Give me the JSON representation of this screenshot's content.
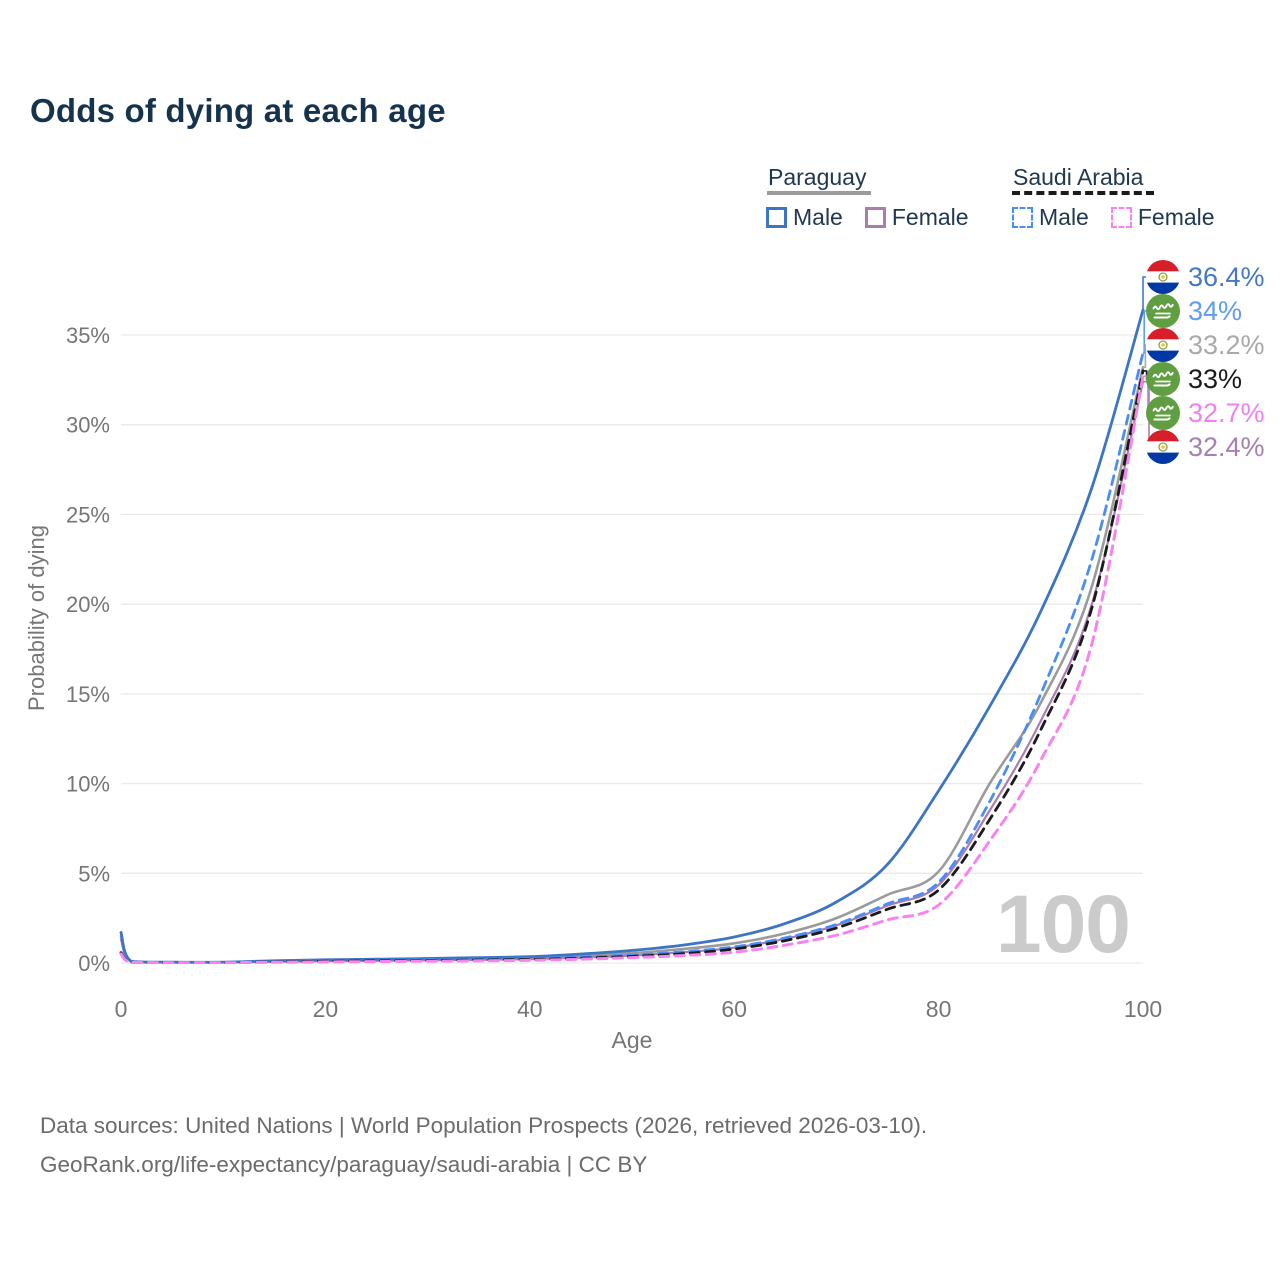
{
  "title": "Odds of dying at each age",
  "legend": {
    "groups": [
      {
        "name": "Paraguay",
        "line_style": "solid",
        "line_color": "#9b9b9b",
        "items": [
          {
            "label": "Male",
            "color": "#3d74c4"
          },
          {
            "label": "Female",
            "color": "#ab7cae"
          }
        ]
      },
      {
        "name": "Saudi Arabia",
        "line_style": "dashed",
        "line_color": "#1b1b1b",
        "items": [
          {
            "label": "Male",
            "color": "#4a8ef5"
          },
          {
            "label": "Female",
            "color": "#f783ef"
          }
        ]
      }
    ]
  },
  "watermark": "100",
  "footer": {
    "line1": "Data sources: United Nations | World Population Prospects (2026, retrieved 2026-03-10).",
    "line2": "GeoRank.org/life-expectancy/paraguay/saudi-arabia | CC BY"
  },
  "chart_data": {
    "type": "line",
    "title": "Odds of dying at each age",
    "xlabel": "Age",
    "ylabel": "Probability of dying",
    "xlim": [
      0,
      100
    ],
    "ylim": [
      0,
      36.5
    ],
    "xticks": [
      0,
      20,
      40,
      60,
      80,
      100
    ],
    "yticks": [
      0,
      5,
      10,
      15,
      20,
      25,
      30,
      35
    ],
    "ytick_suffix": "%",
    "grid": true,
    "legend_position": "top-right",
    "colors": {
      "grid": "#e9e9e9",
      "axis_text": "#767676"
    },
    "series": [
      {
        "name": "Paraguay Both sexes",
        "country": "Paraguay",
        "sex": "Both",
        "color": "#9b9b9b",
        "dash": false,
        "width": 2.6,
        "end_label": {
          "text": "33.2%",
          "color": "#a9a9a9",
          "flag": "paraguay"
        },
        "points": [
          [
            0,
            1.5
          ],
          [
            1,
            0.09
          ],
          [
            5,
            0.04
          ],
          [
            10,
            0.04
          ],
          [
            15,
            0.09
          ],
          [
            20,
            0.14
          ],
          [
            25,
            0.17
          ],
          [
            30,
            0.2
          ],
          [
            35,
            0.24
          ],
          [
            40,
            0.28
          ],
          [
            45,
            0.4
          ],
          [
            50,
            0.55
          ],
          [
            55,
            0.78
          ],
          [
            60,
            1.1
          ],
          [
            65,
            1.65
          ],
          [
            70,
            2.5
          ],
          [
            75,
            3.8
          ],
          [
            80,
            5.1
          ],
          [
            85,
            10
          ],
          [
            90,
            14.5
          ],
          [
            95,
            21
          ],
          [
            100,
            33.2
          ]
        ]
      },
      {
        "name": "Paraguay Female",
        "country": "Paraguay",
        "sex": "Female",
        "color": "#ab7cae",
        "dash": false,
        "width": 2.2,
        "end_label": {
          "text": "32.4%",
          "color": "#a77fb2",
          "flag": "paraguay"
        },
        "points": [
          [
            0,
            1.3
          ],
          [
            1,
            0.08
          ],
          [
            5,
            0.035
          ],
          [
            10,
            0.035
          ],
          [
            15,
            0.07
          ],
          [
            20,
            0.1
          ],
          [
            25,
            0.12
          ],
          [
            30,
            0.15
          ],
          [
            35,
            0.18
          ],
          [
            40,
            0.22
          ],
          [
            45,
            0.3
          ],
          [
            50,
            0.42
          ],
          [
            55,
            0.6
          ],
          [
            60,
            0.85
          ],
          [
            65,
            1.35
          ],
          [
            70,
            2.1
          ],
          [
            75,
            3.2
          ],
          [
            80,
            4.35
          ],
          [
            85,
            8.5
          ],
          [
            90,
            13.5
          ],
          [
            95,
            20
          ],
          [
            100,
            32.4
          ]
        ]
      },
      {
        "name": "Paraguay Male",
        "country": "Paraguay",
        "sex": "Male",
        "color": "#3d74c4",
        "dash": false,
        "width": 2.8,
        "end_label": {
          "text": "36.4%",
          "color": "#4379c2",
          "flag": "paraguay"
        },
        "points": [
          [
            0,
            1.7
          ],
          [
            1,
            0.1
          ],
          [
            5,
            0.05
          ],
          [
            10,
            0.05
          ],
          [
            15,
            0.12
          ],
          [
            20,
            0.18
          ],
          [
            25,
            0.21
          ],
          [
            30,
            0.25
          ],
          [
            35,
            0.3
          ],
          [
            40,
            0.35
          ],
          [
            45,
            0.5
          ],
          [
            50,
            0.7
          ],
          [
            55,
            1.0
          ],
          [
            60,
            1.45
          ],
          [
            65,
            2.2
          ],
          [
            70,
            3.4
          ],
          [
            75,
            5.5
          ],
          [
            80,
            9.6
          ],
          [
            85,
            14.3
          ],
          [
            90,
            19.6
          ],
          [
            95,
            26.5
          ],
          [
            100,
            36.4
          ]
        ]
      },
      {
        "name": "Saudi Arabia Male",
        "country": "Saudi Arabia",
        "sex": "Male",
        "color": "#4a8ef5",
        "dash": true,
        "width": 2.8,
        "end_label": {
          "text": "34%",
          "color": "#5e9cf5",
          "flag": "saudi-arabia"
        },
        "points": [
          [
            0,
            0.6
          ],
          [
            1,
            0.05
          ],
          [
            5,
            0.03
          ],
          [
            10,
            0.03
          ],
          [
            15,
            0.08
          ],
          [
            20,
            0.13
          ],
          [
            25,
            0.15
          ],
          [
            30,
            0.18
          ],
          [
            35,
            0.21
          ],
          [
            40,
            0.25
          ],
          [
            45,
            0.33
          ],
          [
            50,
            0.45
          ],
          [
            55,
            0.62
          ],
          [
            60,
            0.9
          ],
          [
            65,
            1.4
          ],
          [
            70,
            2.15
          ],
          [
            75,
            3.3
          ],
          [
            80,
            4.5
          ],
          [
            85,
            9
          ],
          [
            90,
            15
          ],
          [
            95,
            22.5
          ],
          [
            100,
            34
          ]
        ]
      },
      {
        "name": "Saudi Arabia Both sexes",
        "country": "Saudi Arabia",
        "sex": "Both",
        "color": "#1b1b1b",
        "dash": true,
        "width": 2.8,
        "end_label": {
          "text": "33%",
          "color": "#1a1a1a",
          "flag": "saudi-arabia"
        },
        "points": [
          [
            0,
            0.55
          ],
          [
            1,
            0.045
          ],
          [
            5,
            0.025
          ],
          [
            10,
            0.025
          ],
          [
            15,
            0.06
          ],
          [
            20,
            0.1
          ],
          [
            25,
            0.12
          ],
          [
            30,
            0.14
          ],
          [
            35,
            0.17
          ],
          [
            40,
            0.2
          ],
          [
            45,
            0.27
          ],
          [
            50,
            0.37
          ],
          [
            55,
            0.52
          ],
          [
            60,
            0.78
          ],
          [
            65,
            1.25
          ],
          [
            70,
            1.95
          ],
          [
            75,
            3.0
          ],
          [
            80,
            4.07
          ],
          [
            85,
            8
          ],
          [
            90,
            13
          ],
          [
            95,
            19.8
          ],
          [
            100,
            33
          ]
        ]
      },
      {
        "name": "Saudi Arabia Female",
        "country": "Saudi Arabia",
        "sex": "Female",
        "color": "#f783ef",
        "dash": true,
        "width": 3,
        "end_label": {
          "text": "32.7%",
          "color": "#ef82ee",
          "flag": "saudi-arabia"
        },
        "points": [
          [
            0,
            0.5
          ],
          [
            1,
            0.04
          ],
          [
            5,
            0.02
          ],
          [
            10,
            0.02
          ],
          [
            15,
            0.04
          ],
          [
            20,
            0.06
          ],
          [
            25,
            0.08
          ],
          [
            30,
            0.1
          ],
          [
            35,
            0.12
          ],
          [
            40,
            0.15
          ],
          [
            45,
            0.21
          ],
          [
            50,
            0.3
          ],
          [
            55,
            0.42
          ],
          [
            60,
            0.6
          ],
          [
            65,
            1.0
          ],
          [
            70,
            1.55
          ],
          [
            75,
            2.4
          ],
          [
            80,
            3.23
          ],
          [
            85,
            6.8
          ],
          [
            90,
            11.3
          ],
          [
            95,
            17.8
          ],
          [
            100,
            32.7
          ]
        ]
      }
    ]
  }
}
